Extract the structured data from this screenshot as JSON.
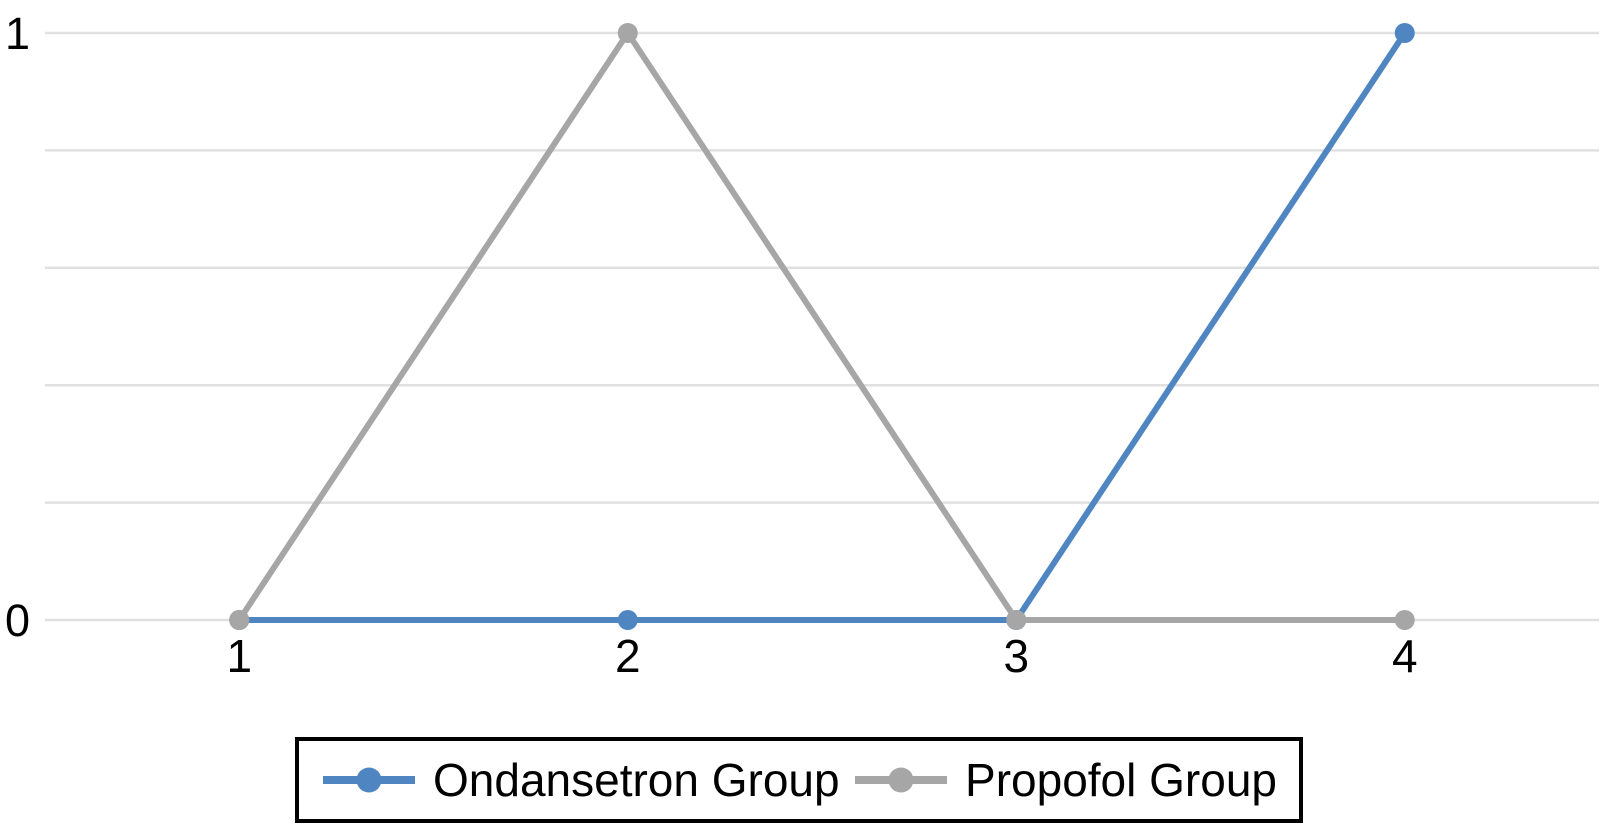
{
  "chart_data": {
    "type": "line",
    "title": "",
    "xlabel": "",
    "ylabel": "",
    "categories": [
      "1",
      "2",
      "3",
      "4"
    ],
    "series": [
      {
        "name": "Ondansetron Group",
        "values": [
          0,
          0,
          0,
          1
        ],
        "color": "#4f86c2"
      },
      {
        "name": "Propofol Group",
        "values": [
          0,
          1,
          0,
          0
        ],
        "color": "#a6a6a6"
      }
    ],
    "ylim": [
      0,
      1
    ],
    "yticks": [
      "0",
      "1"
    ],
    "ytick_values": [
      0,
      1
    ],
    "grid": {
      "show": true,
      "y_interval": 0.2,
      "color": "#e0e0e0"
    },
    "legend_position": "bottom"
  },
  "colors": {
    "background": "#ffffff",
    "tick_text": "#000000",
    "legend_border": "#000000"
  }
}
